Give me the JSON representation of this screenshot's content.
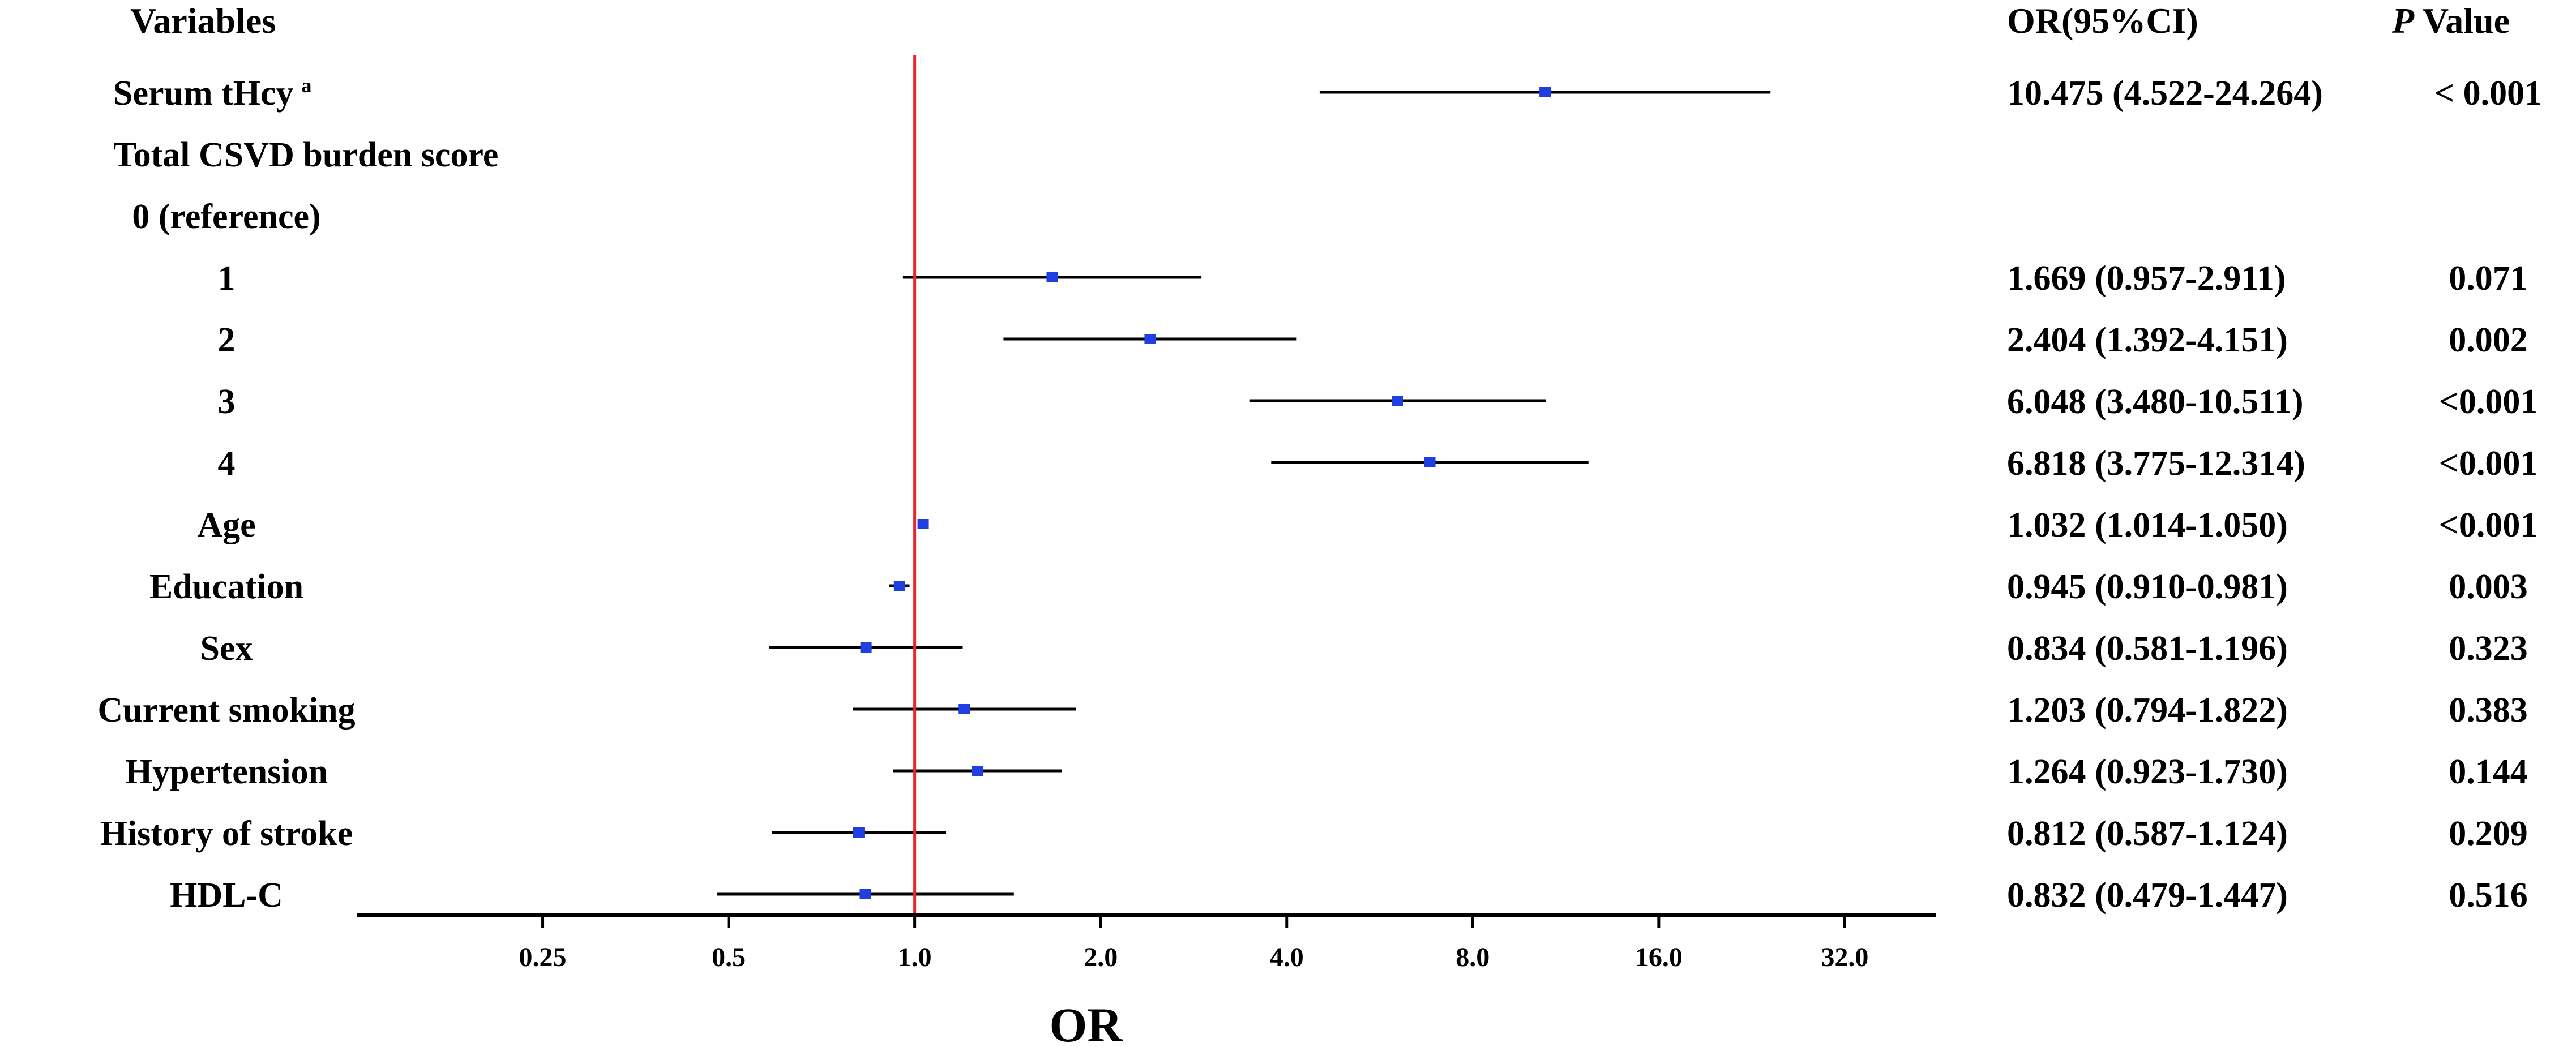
{
  "chart_data": {
    "type": "forest",
    "x_scale": "log2",
    "xlabel": "OR",
    "xlim": [
      0.125,
      45
    ],
    "xticks": [
      0.25,
      0.5,
      1.0,
      2.0,
      4.0,
      8.0,
      16.0,
      32.0
    ],
    "xtick_labels": [
      "0.25",
      "0.5",
      "1.0",
      "2.0",
      "4.0",
      "8.0",
      "16.0",
      "32.0"
    ],
    "reference_line": 1.0,
    "reference_color": "#e8262a",
    "point_color": "#1f3fe0",
    "headers": {
      "variables": "Variables",
      "or_ci": "OR(95%CI)",
      "p_italic": "P",
      "p_rest": " Value"
    },
    "rows": [
      {
        "label": "Serum tHcy",
        "superscript": "a",
        "or": 10.475,
        "lo": 4.522,
        "hi": 24.264,
        "or_ci": "10.475 (4.522-24.264)",
        "p": "< 0.001",
        "align": "left"
      },
      {
        "label": "Total CSVD burden score",
        "or": null,
        "or_ci": "",
        "p": "",
        "align": "left"
      },
      {
        "label": "0 (reference)",
        "or": null,
        "or_ci": "",
        "p": "",
        "align": "center"
      },
      {
        "label": "1",
        "or": 1.669,
        "lo": 0.957,
        "hi": 2.911,
        "or_ci": "1.669 (0.957-2.911)",
        "p": "0.071",
        "align": "center"
      },
      {
        "label": "2",
        "or": 2.404,
        "lo": 1.392,
        "hi": 4.151,
        "or_ci": "2.404 (1.392-4.151)",
        "p": "0.002",
        "align": "center"
      },
      {
        "label": "3",
        "or": 6.048,
        "lo": 3.48,
        "hi": 10.511,
        "or_ci": "6.048 (3.480-10.511)",
        "p": "<0.001",
        "align": "center"
      },
      {
        "label": "4",
        "or": 6.818,
        "lo": 3.775,
        "hi": 12.314,
        "or_ci": "6.818 (3.775-12.314)",
        "p": "<0.001",
        "align": "center"
      },
      {
        "label": "Age",
        "or": 1.032,
        "lo": 1.014,
        "hi": 1.05,
        "or_ci": "1.032 (1.014-1.050)",
        "p": "<0.001",
        "align": "center"
      },
      {
        "label": "Education",
        "or": 0.945,
        "lo": 0.91,
        "hi": 0.981,
        "or_ci": "0.945 (0.910-0.981)",
        "p": "0.003",
        "align": "center"
      },
      {
        "label": "Sex",
        "or": 0.834,
        "lo": 0.581,
        "hi": 1.196,
        "or_ci": "0.834 (0.581-1.196)",
        "p": "0.323",
        "align": "center"
      },
      {
        "label": "Current smoking",
        "or": 1.203,
        "lo": 0.794,
        "hi": 1.822,
        "or_ci": "1.203 (0.794-1.822)",
        "p": "0.383",
        "align": "center"
      },
      {
        "label": "Hypertension",
        "or": 1.264,
        "lo": 0.923,
        "hi": 1.73,
        "or_ci": "1.264 (0.923-1.730)",
        "p": "0.144",
        "align": "center"
      },
      {
        "label": "History of stroke",
        "or": 0.812,
        "lo": 0.587,
        "hi": 1.124,
        "or_ci": "0.812 (0.587-1.124)",
        "p": "0.209",
        "align": "center"
      },
      {
        "label": "HDL-C",
        "or": 0.832,
        "lo": 0.479,
        "hi": 1.447,
        "or_ci": "0.832 (0.479-1.447)",
        "p": "0.516",
        "align": "center"
      }
    ]
  }
}
